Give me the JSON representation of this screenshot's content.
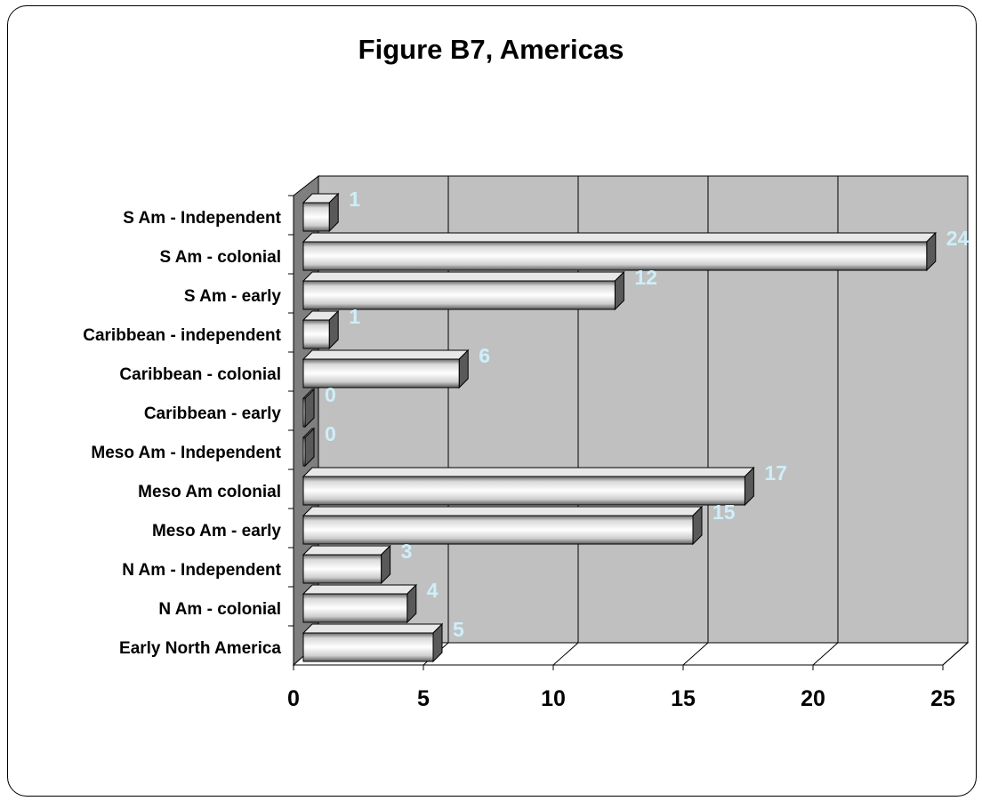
{
  "chart_data": {
    "type": "bar",
    "orientation": "horizontal",
    "title": "Figure B7, Americas",
    "xlabel": "",
    "ylabel": "",
    "xlim": [
      0,
      25
    ],
    "x_ticks": [
      0,
      5,
      10,
      15,
      20,
      25
    ],
    "grid": true,
    "legend": "none",
    "categories": [
      "S Am - Independent",
      "S Am - colonial",
      "S Am - early",
      "Caribbean - independent",
      "Caribbean - colonial",
      "Caribbean - early",
      "Meso Am - Independent",
      "Meso Am colonial",
      "Meso Am - early",
      "N Am - Independent",
      "N Am - colonial",
      "Early North America"
    ],
    "values": [
      1,
      24,
      12,
      1,
      6,
      0,
      0,
      17,
      15,
      3,
      4,
      5
    ],
    "colors": {
      "plot_back": "#c0c0c0",
      "side_wall": "#7f7f7f",
      "floor": "#ffffff",
      "data_label": "#cdeffa",
      "bar_dark": "#595959",
      "bar_light": "#ffffff"
    }
  }
}
